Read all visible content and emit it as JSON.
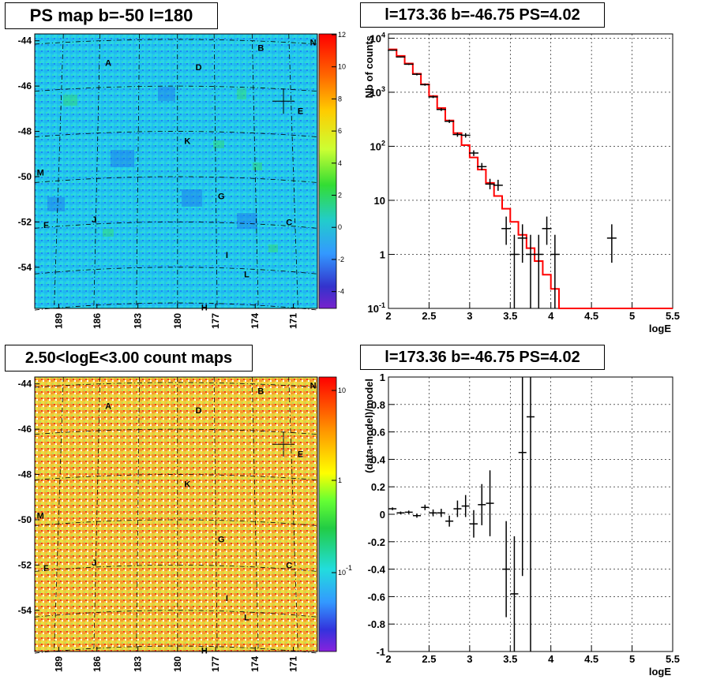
{
  "panels": {
    "ps_map": {
      "title": "PS map b=-50 l=180"
    },
    "spectrum": {
      "title": "l=173.36 b=-46.75 PS=4.02"
    },
    "count_map": {
      "title": "2.50<logE<3.00 count maps"
    },
    "residual": {
      "title": "l=173.36 b=-46.75 PS=4.02"
    }
  },
  "colors": {
    "histogram": "#ff0000",
    "points": "#000000",
    "frame": "#000000"
  },
  "chart_data": [
    {
      "type": "heatmap",
      "title": "PS map b=-50 l=180",
      "y_ticks": [
        "-44",
        "-46",
        "-48",
        "-50",
        "-52",
        "-54"
      ],
      "x_ticks": [
        "189",
        "186",
        "183",
        "180",
        "177",
        "174",
        "171"
      ],
      "colorbar_ticks": [
        "12",
        "10",
        "8",
        "6",
        "4",
        "2",
        "0",
        "-2",
        "-4"
      ],
      "colorbar_range": [
        -5,
        12
      ],
      "source_labels": [
        "A",
        "B",
        "N",
        "D",
        "E",
        "K",
        "M",
        "G",
        "F",
        "J",
        "C",
        "I",
        "L",
        "H"
      ],
      "marker": {
        "l": 173.36,
        "b": -46.75
      }
    },
    {
      "type": "line",
      "title": "l=173.36 b=-46.75 PS=4.02",
      "xlabel": "logE",
      "ylabel": "Nb of counts",
      "xlim": [
        2,
        5.5
      ],
      "ylim": [
        0.1,
        12000
      ],
      "log_y": true,
      "grid": true,
      "x_ticks": [
        "2",
        "2.5",
        "3",
        "3.5",
        "4",
        "4.5",
        "5",
        "5.5"
      ],
      "y_ticks": [
        {
          "base": "10",
          "exp": "-1"
        },
        {
          "base": "1",
          "exp": ""
        },
        {
          "base": "10",
          "exp": ""
        },
        {
          "base": "10",
          "exp": "2"
        },
        {
          "base": "10",
          "exp": "3"
        },
        {
          "base": "10",
          "exp": "4"
        }
      ],
      "series": [
        {
          "kind": "model_histogram",
          "bin_edges": [
            2.0,
            2.1,
            2.2,
            2.3,
            2.4,
            2.5,
            2.6,
            2.7,
            2.8,
            2.9,
            3.0,
            3.1,
            3.2,
            3.3,
            3.4,
            3.5,
            3.6,
            3.7,
            3.8,
            3.9,
            4.0,
            4.1,
            4.2,
            4.3,
            4.4,
            4.5,
            4.6,
            4.7,
            4.8,
            4.9,
            5.0,
            5.1,
            5.2,
            5.3,
            5.4,
            5.5
          ],
          "values": [
            6200,
            4700,
            3400,
            2200,
            1400,
            850,
            510,
            300,
            175,
            105,
            62,
            37,
            21,
            12,
            7,
            4,
            2.3,
            1.3,
            0.75,
            0.42,
            0.23,
            0.1,
            0.1,
            0.1,
            0.1,
            0.1,
            0.1,
            0.1,
            0.1,
            0.1,
            0.1,
            0.1,
            0.1,
            0.1,
            0.1
          ]
        },
        {
          "kind": "data_points",
          "points": [
            {
              "x": 2.05,
              "y": 6000,
              "lo": 5900,
              "hi": 6100
            },
            {
              "x": 2.15,
              "y": 4500,
              "lo": 4400,
              "hi": 4600
            },
            {
              "x": 2.25,
              "y": 3300,
              "lo": 3200,
              "hi": 3400
            },
            {
              "x": 2.35,
              "y": 2150,
              "lo": 2050,
              "hi": 2250
            },
            {
              "x": 2.45,
              "y": 1380,
              "lo": 1320,
              "hi": 1450
            },
            {
              "x": 2.55,
              "y": 820,
              "lo": 780,
              "hi": 870
            },
            {
              "x": 2.65,
              "y": 480,
              "lo": 450,
              "hi": 510
            },
            {
              "x": 2.75,
              "y": 290,
              "lo": 270,
              "hi": 310
            },
            {
              "x": 2.85,
              "y": 165,
              "lo": 150,
              "hi": 180
            },
            {
              "x": 2.95,
              "y": 160,
              "lo": 145,
              "hi": 175
            },
            {
              "x": 3.05,
              "y": 75,
              "lo": 66,
              "hi": 84
            },
            {
              "x": 3.15,
              "y": 42,
              "lo": 36,
              "hi": 49
            },
            {
              "x": 3.25,
              "y": 20,
              "lo": 16,
              "hi": 25
            },
            {
              "x": 3.35,
              "y": 19,
              "lo": 15,
              "hi": 24
            },
            {
              "x": 3.45,
              "y": 3,
              "lo": 1.5,
              "hi": 5
            },
            {
              "x": 3.55,
              "y": 1,
              "lo": 0.1,
              "hi": 2.3
            },
            {
              "x": 3.65,
              "y": 2,
              "lo": 0.7,
              "hi": 3.6
            },
            {
              "x": 3.75,
              "y": 1,
              "lo": 0.1,
              "hi": 2.3
            },
            {
              "x": 3.85,
              "y": 1,
              "lo": 0.1,
              "hi": 2.3
            },
            {
              "x": 3.95,
              "y": 3,
              "lo": 1.5,
              "hi": 5
            },
            {
              "x": 4.05,
              "y": 1,
              "lo": 0.1,
              "hi": 2.3
            },
            {
              "x": 4.75,
              "y": 2,
              "lo": 0.7,
              "hi": 3.6
            }
          ]
        }
      ]
    },
    {
      "type": "heatmap",
      "title": "2.50<logE<3.00 count maps",
      "y_ticks": [
        "-44",
        "-46",
        "-48",
        "-50",
        "-52",
        "-54"
      ],
      "x_ticks": [
        "189",
        "186",
        "183",
        "180",
        "177",
        "174",
        "171"
      ],
      "colorbar_ticks": [
        {
          "base": "10",
          "exp": ""
        },
        {
          "base": "1",
          "exp": ""
        },
        {
          "base": "10",
          "exp": "-1"
        }
      ],
      "log_scale": true,
      "source_labels": [
        "A",
        "B",
        "N",
        "D",
        "E",
        "K",
        "M",
        "G",
        "F",
        "J",
        "C",
        "I",
        "L",
        "H"
      ],
      "marker": {
        "l": 173.36,
        "b": -46.75
      }
    },
    {
      "type": "scatter",
      "title": "l=173.36 b=-46.75 PS=4.02",
      "xlabel": "logE",
      "ylabel": "(data-model)/model",
      "xlim": [
        2,
        5.5
      ],
      "ylim": [
        -1,
        1
      ],
      "grid": true,
      "x_ticks": [
        "2",
        "2.5",
        "3",
        "3.5",
        "4",
        "4.5",
        "5",
        "5.5"
      ],
      "y_ticks": [
        "1",
        "0.8",
        "0.6",
        "0.4",
        "0.2",
        "0",
        "-0.2",
        "-0.4",
        "-0.6",
        "-0.8",
        "-1"
      ],
      "points": [
        {
          "x": 2.05,
          "y": 0.04,
          "err": 0.01
        },
        {
          "x": 2.15,
          "y": 0.01,
          "err": 0.01
        },
        {
          "x": 2.25,
          "y": 0.015,
          "err": 0.012
        },
        {
          "x": 2.35,
          "y": -0.01,
          "err": 0.015
        },
        {
          "x": 2.45,
          "y": 0.05,
          "err": 0.02
        },
        {
          "x": 2.55,
          "y": 0.01,
          "err": 0.025
        },
        {
          "x": 2.65,
          "y": 0.01,
          "err": 0.03
        },
        {
          "x": 2.75,
          "y": -0.05,
          "err": 0.04
        },
        {
          "x": 2.85,
          "y": 0.04,
          "err": 0.06
        },
        {
          "x": 2.95,
          "y": 0.06,
          "err": 0.08
        },
        {
          "x": 3.05,
          "y": -0.07,
          "err": 0.1
        },
        {
          "x": 3.15,
          "y": 0.07,
          "err": 0.15
        },
        {
          "x": 3.25,
          "y": 0.08,
          "err": 0.24
        },
        {
          "x": 3.45,
          "y": -0.4,
          "err": 0.35
        },
        {
          "x": 3.55,
          "y": -0.58,
          "err": 0.42
        },
        {
          "x": 3.65,
          "y": 0.45,
          "err": 0.9
        },
        {
          "x": 3.75,
          "y": 0.71,
          "err": 1.8
        }
      ]
    }
  ]
}
